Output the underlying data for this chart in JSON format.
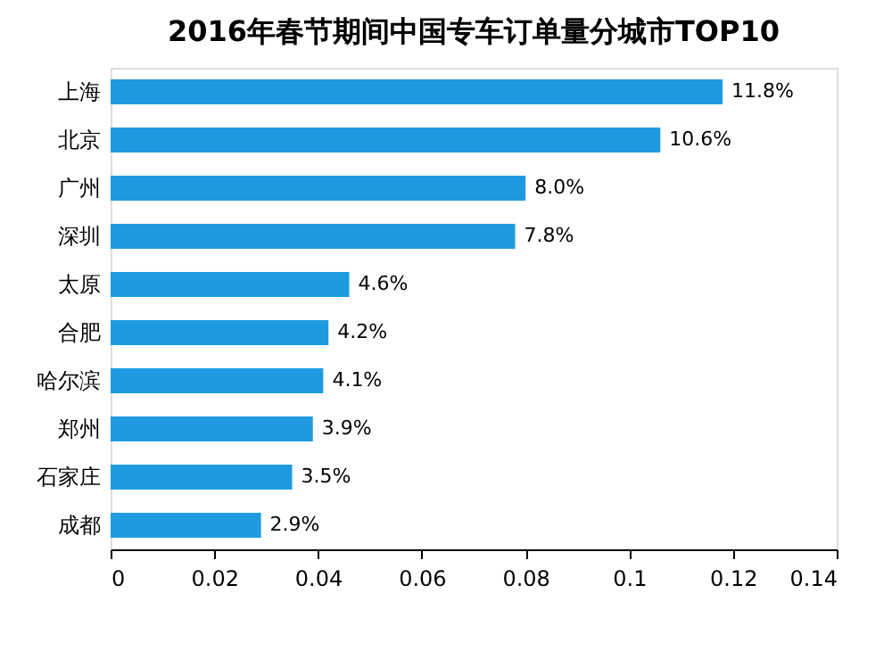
{
  "chart_data": {
    "type": "bar",
    "orientation": "horizontal",
    "title": "2016年春节期间中国专车订单量分城市TOP10",
    "categories": [
      "上海",
      "北京",
      "广州",
      "深圳",
      "太原",
      "合肥",
      "哈尔滨",
      "郑州",
      "石家庄",
      "成都"
    ],
    "values": [
      0.118,
      0.106,
      0.08,
      0.078,
      0.046,
      0.042,
      0.041,
      0.039,
      0.035,
      0.029
    ],
    "value_labels": [
      "11.8%",
      "10.6%",
      "8.0%",
      "7.8%",
      "4.6%",
      "4.2%",
      "4.1%",
      "3.9%",
      "3.5%",
      "2.9%"
    ],
    "color": "#1e9be0",
    "xlim": [
      0,
      0.14
    ],
    "xticks": [
      0,
      0.02,
      0.04,
      0.06,
      0.08,
      0.1,
      0.12,
      0.14
    ],
    "grid": false
  }
}
